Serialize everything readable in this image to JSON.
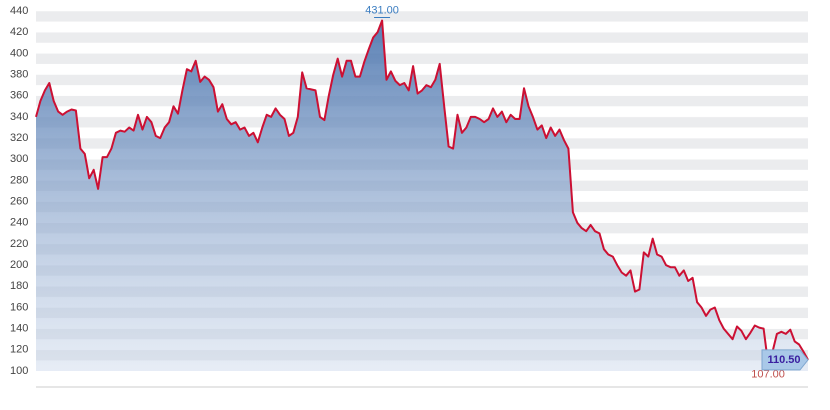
{
  "chart_data": {
    "type": "area",
    "values": [
      340,
      355,
      365,
      372,
      355,
      345,
      342,
      345,
      347,
      346,
      310,
      305,
      282,
      290,
      272,
      302,
      302,
      310,
      325,
      327,
      326,
      330,
      327,
      342,
      328,
      340,
      335,
      322,
      320,
      330,
      335,
      350,
      343,
      365,
      385,
      383,
      393,
      373,
      378,
      375,
      368,
      345,
      352,
      338,
      333,
      335,
      328,
      330,
      322,
      325,
      316,
      330,
      342,
      340,
      348,
      342,
      338,
      322,
      325,
      340,
      382,
      367,
      366,
      365,
      340,
      337,
      360,
      380,
      395,
      378,
      393,
      393,
      378,
      378,
      392,
      404,
      415,
      420,
      431,
      375,
      383,
      374,
      370,
      372,
      365,
      388,
      362,
      365,
      370,
      368,
      375,
      390,
      350,
      312,
      310,
      342,
      325,
      330,
      340,
      340,
      338,
      335,
      338,
      348,
      340,
      345,
      335,
      342,
      338,
      338,
      367,
      350,
      340,
      328,
      332,
      320,
      330,
      322,
      328,
      318,
      310,
      250,
      240,
      235,
      232,
      238,
      232,
      230,
      215,
      210,
      208,
      200,
      193,
      190,
      195,
      175,
      177,
      212,
      208,
      225,
      210,
      208,
      200,
      198,
      198,
      190,
      195,
      185,
      188,
      165,
      160,
      152,
      158,
      160,
      148,
      140,
      135,
      130,
      142,
      138,
      130,
      136,
      143,
      141,
      140,
      107,
      118,
      135,
      137,
      135,
      139,
      128,
      125,
      118,
      110.5
    ],
    "color": "#cc1033",
    "ylim": [
      100,
      440
    ],
    "yticks": [
      100,
      120,
      140,
      160,
      180,
      200,
      220,
      240,
      260,
      280,
      300,
      320,
      340,
      360,
      380,
      400,
      420,
      440
    ],
    "grid": true,
    "annotations": [
      {
        "value": 431,
        "label": "431.00"
      },
      {
        "value": 107,
        "label": "107.00"
      },
      {
        "value": 110.5,
        "label": "110.50"
      }
    ]
  }
}
